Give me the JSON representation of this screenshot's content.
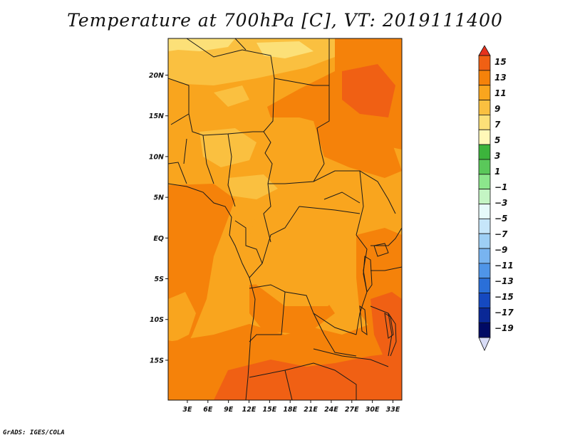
{
  "title": "Temperature at 700hPa [C], VT: 2019111400",
  "credit": "GrADS: IGES/COLA",
  "map": {
    "lon_ticks": [
      "3E",
      "6E",
      "9E",
      "12E",
      "15E",
      "18E",
      "21E",
      "24E",
      "27E",
      "30E",
      "33E"
    ],
    "lat_ticks": [
      "20N",
      "15N",
      "10N",
      "5N",
      "EQ",
      "5S",
      "10S",
      "15S"
    ],
    "extent": {
      "lon_min": 0.2,
      "lon_max": 34.3,
      "lat_min": -19.9,
      "lat_max": 24.5
    }
  },
  "colorbar": {
    "labels": [
      "15",
      "13",
      "11",
      "9",
      "7",
      "5",
      "3",
      "1",
      "-1",
      "-3",
      "-5",
      "-7",
      "-9",
      "-11",
      "-13",
      "-15",
      "-17",
      "-19"
    ],
    "colors": [
      "#e6321e",
      "#f06014",
      "#f5820a",
      "#f9a51e",
      "#fac040",
      "#fce078",
      "#fff8b8",
      "#3cb43c",
      "#5ac85a",
      "#8ce68c",
      "#c4f5c4",
      "#e6fafa",
      "#c6e6fa",
      "#9ecff5",
      "#78b4f0",
      "#4f95e8",
      "#2a6fd8",
      "#1549c0",
      "#0a2896",
      "#000a64"
    ],
    "bottom_color": "#d8dcf6"
  },
  "colors": {
    "fill_main": "#f9a51e",
    "fill_warm": "#f5820a",
    "fill_hot": "#f06014",
    "fill_cool": "#fac040",
    "fill_cooler": "#fce078",
    "border": "#1a1a1a"
  }
}
